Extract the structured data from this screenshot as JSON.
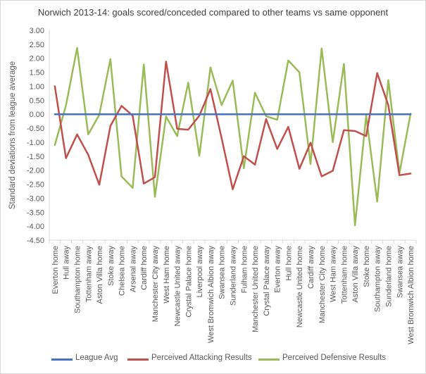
{
  "chart_data": {
    "type": "line",
    "title": "Norwich 2013-14: goals scored/conceded compared to other teams vs same opponent",
    "ylabel": "Standard deviations from league average",
    "xlabel": "",
    "ylim": [
      -4.5,
      3.0
    ],
    "ytick_step": 0.5,
    "ytick_labels": [
      "3.00",
      "2.50",
      "2.00",
      "1.50",
      "1.00",
      "0.50",
      "0.00",
      "-0.50",
      "-1.00",
      "-1.50",
      "-2.00",
      "-2.50",
      "-3.00",
      "-3.50",
      "-4.00",
      "-4.50"
    ],
    "grid": false,
    "legend_position": "bottom",
    "categories": [
      "Everton home",
      "Hull away",
      "Southampton home",
      "Tottenham away",
      "Aston Villa home",
      "Stoke away",
      "Chelsea home",
      "Arsenal away",
      "Cardiff home",
      "Manchester City away",
      "West Ham home",
      "Newcastle United away",
      "Crystal Palace home",
      "Liverpool away",
      "West Bromwich Albion away",
      "Swansea home",
      "Sunderland away",
      "Fulham home",
      "Manchester United home",
      "Crystal Palace away",
      "Everton away",
      "Hull home",
      "Newcastle United home",
      "Cardiff away",
      "Manchester City home",
      "West Ham away",
      "Tottenham home",
      "Aston Villa away",
      "Stoke home",
      "Southampton away",
      "Sunderland home",
      "Swansea away",
      "West Bromwich Albion home"
    ],
    "series": [
      {
        "name": "League Avg",
        "color": "#4472c4",
        "values": [
          0,
          0,
          0,
          0,
          0,
          0,
          0,
          0,
          0,
          0,
          0,
          0,
          0,
          0,
          0,
          0,
          0,
          0,
          0,
          0,
          0,
          0,
          0,
          0,
          0,
          0,
          0,
          0,
          0,
          0,
          0,
          0,
          0
        ]
      },
      {
        "name": "Perceived Attacking Results",
        "color": "#c0504d",
        "values": [
          1.0,
          -1.57,
          -0.72,
          -1.45,
          -2.52,
          -0.42,
          0.3,
          -0.05,
          -2.48,
          -2.25,
          1.88,
          -0.52,
          -0.55,
          -0.05,
          0.9,
          -0.85,
          -2.68,
          -1.5,
          -1.8,
          -0.17,
          -1.24,
          -0.45,
          -1.95,
          -1.02,
          -2.22,
          -2.02,
          -0.57,
          -0.6,
          -0.78,
          1.47,
          0.32,
          -2.18,
          -2.12
        ]
      },
      {
        "name": "Perceived Defensive Results",
        "color": "#9bbb59",
        "values": [
          -1.1,
          0.32,
          2.37,
          -0.72,
          -0.02,
          1.97,
          -2.22,
          -2.63,
          1.78,
          -2.95,
          -0.08,
          -0.78,
          1.13,
          -1.48,
          1.67,
          0.33,
          1.2,
          -1.93,
          0.77,
          -0.07,
          -0.2,
          1.92,
          1.5,
          -1.78,
          2.35,
          -1.0,
          1.8,
          -3.97,
          -0.05,
          -3.12,
          1.22,
          -2.1,
          0.02
        ]
      }
    ]
  }
}
